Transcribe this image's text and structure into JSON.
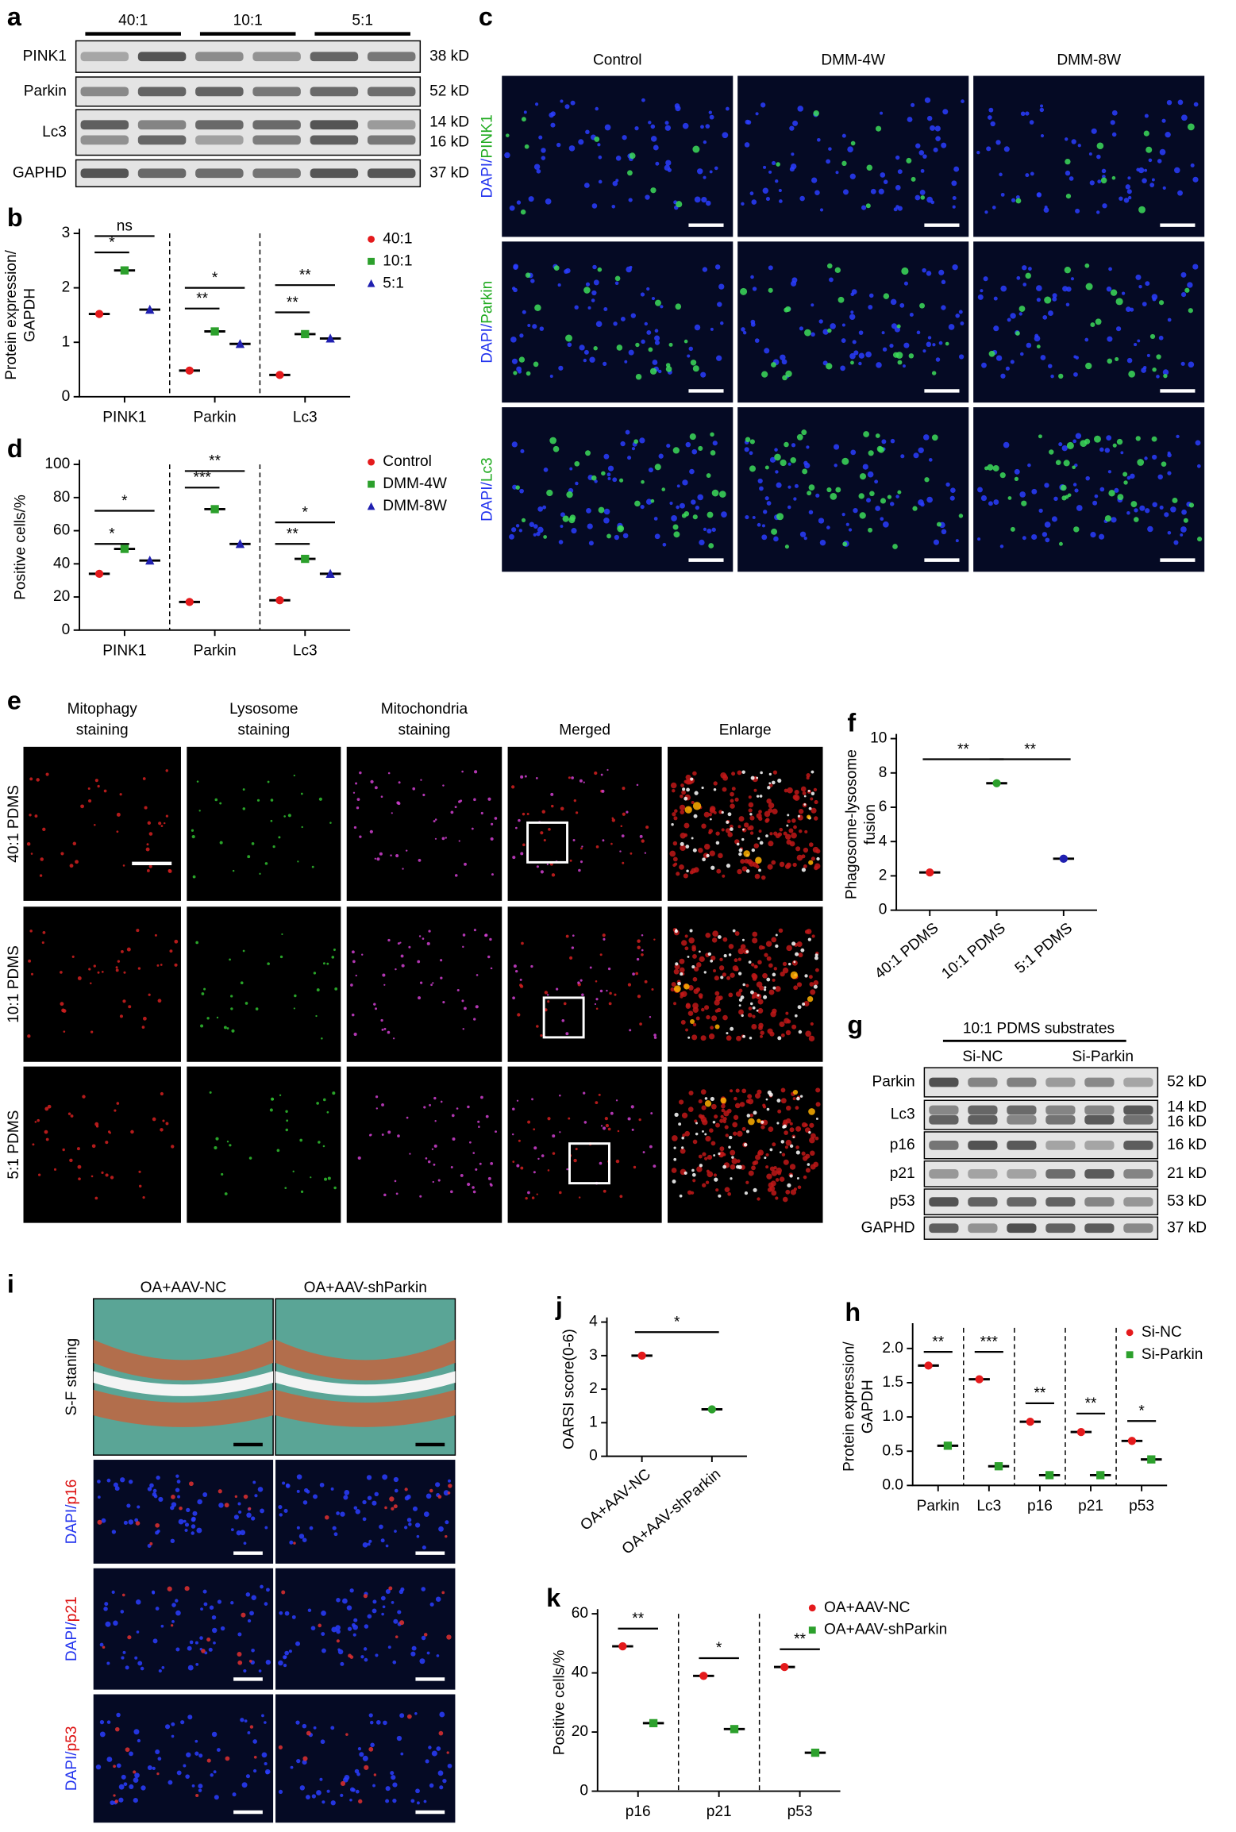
{
  "panels": [
    {
      "label": "a",
      "groups": [
        "40:1",
        "10:1",
        "5:1"
      ],
      "rows": [
        {
          "name": "PINK1",
          "sizes": [
            "38 kD"
          ]
        },
        {
          "name": "Parkin",
          "sizes": [
            "52 kD"
          ]
        },
        {
          "name": "Lc3",
          "sizes": [
            "14 kD",
            "16 kD"
          ]
        },
        {
          "name": "GAPHD",
          "sizes": [
            "37 kD"
          ]
        }
      ]
    },
    {
      "label": "c",
      "columns": [
        "Control",
        "DMM-4W",
        "DMM-8W"
      ],
      "label_colors": [
        "#2233ee",
        "#1faa1f"
      ],
      "rows": [
        [
          "DAPI/",
          "PINK1"
        ],
        [
          "DAPI/",
          "Parkin"
        ],
        [
          "DAPI/",
          "Lc3"
        ]
      ]
    },
    {
      "label": "e",
      "columns": [
        [
          "Mitophagy",
          "staining"
        ],
        [
          "Lysosome",
          "staining"
        ],
        [
          "Mitochondria",
          "staining"
        ],
        [
          "Merged"
        ],
        [
          "Enlarge"
        ]
      ],
      "rows": [
        "40:1 PDMS",
        "10:1 PDMS",
        "5:1 PDMS"
      ]
    },
    {
      "label": "g",
      "title": "10:1 PDMS substrates",
      "groups": [
        "Si-NC",
        "Si-Parkin"
      ],
      "rows": [
        {
          "name": "Parkin",
          "sizes": [
            "52 kD"
          ]
        },
        {
          "name": "Lc3",
          "sizes": [
            "14 kD",
            "16 kD"
          ]
        },
        {
          "name": "p16",
          "sizes": [
            "16 kD"
          ]
        },
        {
          "name": "p21",
          "sizes": [
            "21 kD"
          ]
        },
        {
          "name": "p53",
          "sizes": [
            "53 kD"
          ]
        },
        {
          "name": "GAPHD",
          "sizes": [
            "37 kD"
          ]
        }
      ]
    },
    {
      "label": "i",
      "columns": [
        "OA+AAV-NC",
        "OA+AAV-shParkin"
      ],
      "label_colors": [
        "#2233ee",
        "#dd1111"
      ],
      "rows": [
        [
          "S-F staning"
        ],
        [
          "DAPI/",
          "p16"
        ],
        [
          "DAPI/",
          "p21"
        ],
        [
          "DAPI/",
          "p53"
        ]
      ]
    }
  ],
  "chart_data": [
    {
      "label": "b",
      "type": "dot",
      "ylabel": [
        "Protein expression/",
        "GAPDH"
      ],
      "categories": [
        "PINK1",
        "Parkin",
        "Lc3"
      ],
      "series": [
        {
          "name": "40:1",
          "color": "#e41a1c",
          "marker": "circle",
          "values": [
            1.52,
            0.48,
            0.4
          ]
        },
        {
          "name": "10:1",
          "color": "#2ca02c",
          "marker": "square",
          "values": [
            2.32,
            1.2,
            1.15
          ]
        },
        {
          "name": "5:1",
          "color": "#2020b0",
          "marker": "triangle",
          "values": [
            1.6,
            0.97,
            1.07
          ]
        }
      ],
      "ylim": [
        0,
        3
      ],
      "yticks": [
        0,
        1,
        2,
        3
      ],
      "dividers": true,
      "significance": [
        "*",
        "ns",
        "**",
        "*",
        "**",
        "**"
      ]
    },
    {
      "label": "d",
      "type": "dot",
      "ylabel": [
        "Positive cells/%"
      ],
      "categories": [
        "PINK1",
        "Parkin",
        "Lc3"
      ],
      "series": [
        {
          "name": "Control",
          "color": "#e41a1c",
          "marker": "circle",
          "values": [
            34,
            17,
            18
          ]
        },
        {
          "name": "DMM-4W",
          "color": "#2ca02c",
          "marker": "square",
          "values": [
            49,
            73,
            43
          ]
        },
        {
          "name": "DMM-8W",
          "color": "#2020b0",
          "marker": "triangle",
          "values": [
            42,
            52,
            34
          ]
        }
      ],
      "ylim": [
        0,
        100
      ],
      "yticks": [
        0,
        20,
        40,
        60,
        80,
        100
      ],
      "dividers": true,
      "significance": [
        "*",
        "*",
        "***",
        "**",
        "**",
        "*"
      ]
    },
    {
      "label": "f",
      "type": "dot",
      "ylabel": [
        "Phagosome-lysosome",
        "fusion"
      ],
      "categories": [
        "40:1 PDMS",
        "10:1 PDMS",
        "5:1 PDMS"
      ],
      "values": [
        2.2,
        7.4,
        3.0
      ],
      "colors": [
        "#e41a1c",
        "#2ca02c",
        "#2020b0"
      ],
      "ylim": [
        0,
        10
      ],
      "yticks": [
        0,
        2,
        4,
        6,
        8,
        10
      ],
      "significance": [
        "**",
        "**"
      ]
    },
    {
      "label": "j",
      "type": "dot",
      "ylabel": [
        "OARSI score(0-6)"
      ],
      "categories": [
        "OA+AAV-NC",
        "OA+AAV-shParkin"
      ],
      "values": [
        3.0,
        1.4
      ],
      "colors": [
        "#e41a1c",
        "#2ca02c"
      ],
      "ylim": [
        0,
        4
      ],
      "yticks": [
        0,
        1,
        2,
        3,
        4
      ],
      "significance": [
        "*"
      ]
    },
    {
      "label": "h",
      "type": "dot",
      "ylabel": [
        "Protein expression/",
        "GAPDH"
      ],
      "categories": [
        "Parkin",
        "Lc3",
        "p16",
        "p21",
        "p53"
      ],
      "series": [
        {
          "name": "Si-NC",
          "color": "#e41a1c",
          "marker": "circle",
          "values": [
            1.75,
            1.55,
            0.93,
            0.78,
            0.65
          ]
        },
        {
          "name": "Si-Parkin",
          "color": "#2ca02c",
          "marker": "square",
          "values": [
            0.58,
            0.28,
            0.15,
            0.15,
            0.38
          ]
        }
      ],
      "ylim": [
        0,
        2.3
      ],
      "yticks": [
        {
          "value": 0,
          "label": "0.0"
        },
        {
          "value": 0.5,
          "label": "0.5"
        },
        {
          "value": 1,
          "label": "1.0"
        },
        {
          "value": 1.5,
          "label": "1.5"
        },
        {
          "value": 2,
          "label": "2.0"
        }
      ],
      "dividers": true,
      "significance": [
        "**",
        "***",
        "**",
        "**",
        "*"
      ]
    },
    {
      "label": "k",
      "type": "dot",
      "ylabel": [
        "Positive cells/%"
      ],
      "categories": [
        "p16",
        "p21",
        "p53"
      ],
      "series": [
        {
          "name": "OA+AAV-NC",
          "color": "#e41a1c",
          "marker": "circle",
          "values": [
            49,
            39,
            42
          ]
        },
        {
          "name": "OA+AAV-shParkin",
          "color": "#2ca02c",
          "marker": "square",
          "values": [
            23,
            21,
            13
          ]
        }
      ],
      "ylim": [
        0,
        60
      ],
      "yticks": [
        0,
        20,
        40,
        60
      ],
      "dividers": true,
      "significance": [
        "**",
        "*",
        "**"
      ]
    }
  ]
}
